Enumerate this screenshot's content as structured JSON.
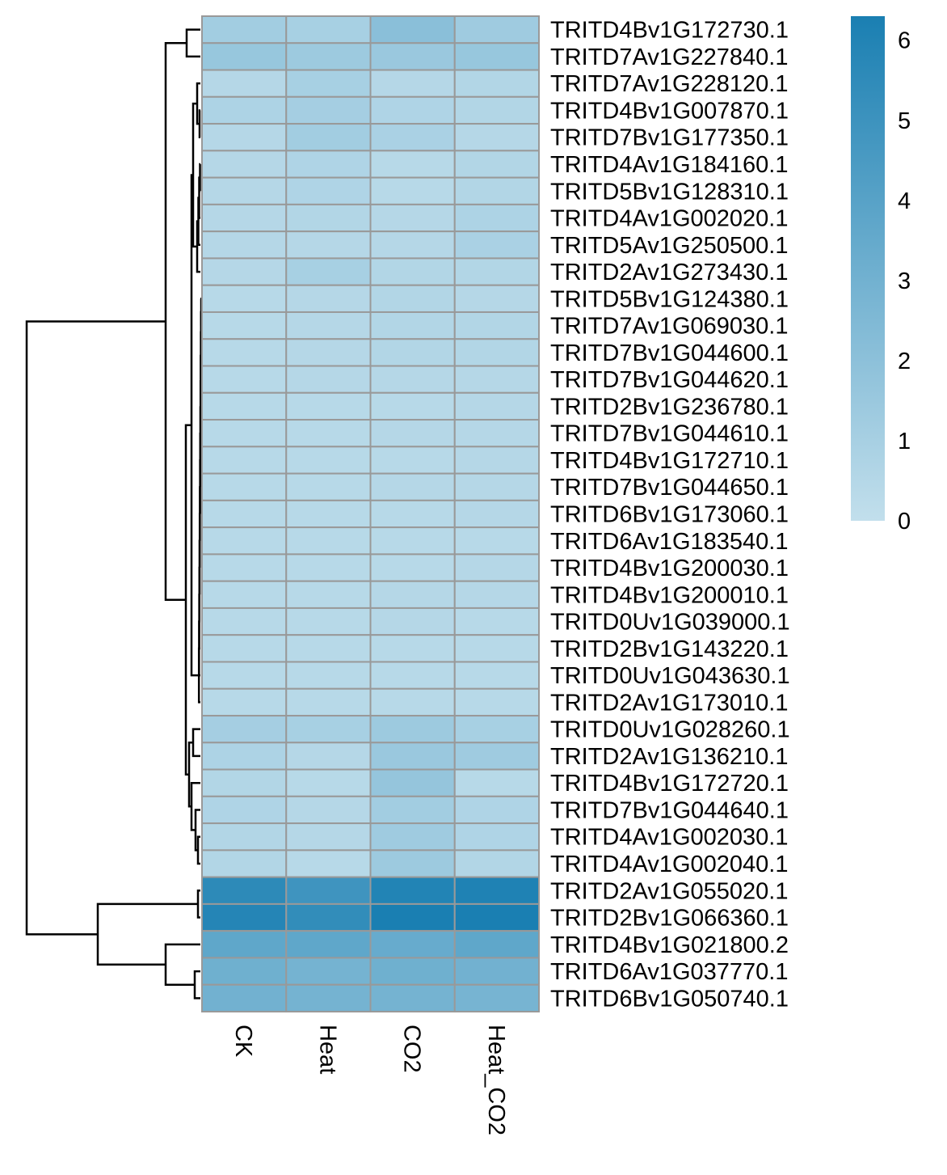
{
  "chart_data": {
    "type": "heatmap",
    "columns": [
      "CK",
      "Heat",
      "CO2",
      "Heat_CO2"
    ],
    "rows": [
      "TRITD4Bv1G172730.1",
      "TRITD7Av1G227840.1",
      "TRITD7Av1G228120.1",
      "TRITD4Bv1G007870.1",
      "TRITD7Bv1G177350.1",
      "TRITD4Av1G184160.1",
      "TRITD5Bv1G128310.1",
      "TRITD4Av1G002020.1",
      "TRITD5Av1G250500.1",
      "TRITD2Av1G273430.1",
      "TRITD5Bv1G124380.1",
      "TRITD7Av1G069030.1",
      "TRITD7Bv1G044600.1",
      "TRITD7Bv1G044620.1",
      "TRITD2Bv1G236780.1",
      "TRITD7Bv1G044610.1",
      "TRITD4Bv1G172710.1",
      "TRITD7Bv1G044650.1",
      "TRITD6Bv1G173060.1",
      "TRITD6Av1G183540.1",
      "TRITD4Bv1G200030.1",
      "TRITD4Bv1G200010.1",
      "TRITD0Uv1G039000.1",
      "TRITD2Bv1G143220.1",
      "TRITD0Uv1G043630.1",
      "TRITD2Av1G173010.1",
      "TRITD0Uv1G028260.1",
      "TRITD2Av1G136210.1",
      "TRITD4Bv1G172720.1",
      "TRITD7Bv1G044640.1",
      "TRITD4Av1G002030.1",
      "TRITD4Av1G002040.1",
      "TRITD2Av1G055020.1",
      "TRITD2Bv1G066360.1",
      "TRITD4Bv1G021800.2",
      "TRITD6Av1G037770.1",
      "TRITD6Bv1G050740.1"
    ],
    "values": [
      [
        1.2,
        1.0,
        2.1,
        1.3
      ],
      [
        1.6,
        1.4,
        1.5,
        1.6
      ],
      [
        0.5,
        1.0,
        0.5,
        0.6
      ],
      [
        0.8,
        1.1,
        0.7,
        0.6
      ],
      [
        0.5,
        1.2,
        0.9,
        0.5
      ],
      [
        0.5,
        0.7,
        0.4,
        0.6
      ],
      [
        0.5,
        0.7,
        0.4,
        0.6
      ],
      [
        0.5,
        0.6,
        0.5,
        0.8
      ],
      [
        0.5,
        0.5,
        0.5,
        0.9
      ],
      [
        0.5,
        1.0,
        0.6,
        0.6
      ],
      [
        0.4,
        0.5,
        0.6,
        0.5
      ],
      [
        0.4,
        0.5,
        0.6,
        0.6
      ],
      [
        0.4,
        0.5,
        0.6,
        0.6
      ],
      [
        0.4,
        0.5,
        0.5,
        0.5
      ],
      [
        0.4,
        0.4,
        0.4,
        0.5
      ],
      [
        0.4,
        0.4,
        0.5,
        0.5
      ],
      [
        0.4,
        0.4,
        0.4,
        0.5
      ],
      [
        0.4,
        0.4,
        0.5,
        0.5
      ],
      [
        0.4,
        0.4,
        0.4,
        0.5
      ],
      [
        0.4,
        0.4,
        0.4,
        0.4
      ],
      [
        0.4,
        0.4,
        0.4,
        0.5
      ],
      [
        0.4,
        0.4,
        0.5,
        0.5
      ],
      [
        0.4,
        0.4,
        0.5,
        0.4
      ],
      [
        0.4,
        0.4,
        0.4,
        0.4
      ],
      [
        0.4,
        0.4,
        0.4,
        0.4
      ],
      [
        0.4,
        0.4,
        0.4,
        0.4
      ],
      [
        1.1,
        1.0,
        1.4,
        1.0
      ],
      [
        0.8,
        0.5,
        1.5,
        1.3
      ],
      [
        0.6,
        0.4,
        1.7,
        0.4
      ],
      [
        0.7,
        0.5,
        1.2,
        0.7
      ],
      [
        0.6,
        0.5,
        1.3,
        0.7
      ],
      [
        0.6,
        0.4,
        1.4,
        0.6
      ],
      [
        5.6,
        4.9,
        6.0,
        6.1
      ],
      [
        5.9,
        5.4,
        6.3,
        6.3
      ],
      [
        3.7,
        3.7,
        3.4,
        3.7
      ],
      [
        3.1,
        2.9,
        3.1,
        3.0
      ],
      [
        3.0,
        2.9,
        2.9,
        2.8
      ]
    ],
    "colorbar": {
      "ticks": [
        0,
        1,
        2,
        3,
        4,
        5,
        6
      ],
      "range": [
        0,
        6.3
      ],
      "color_low": "#c2dfec",
      "color_high": "#1a7fb2"
    },
    "cell_border_color": "#999999",
    "dendrogram_color": "#000000",
    "dendrogram_side": "left"
  }
}
